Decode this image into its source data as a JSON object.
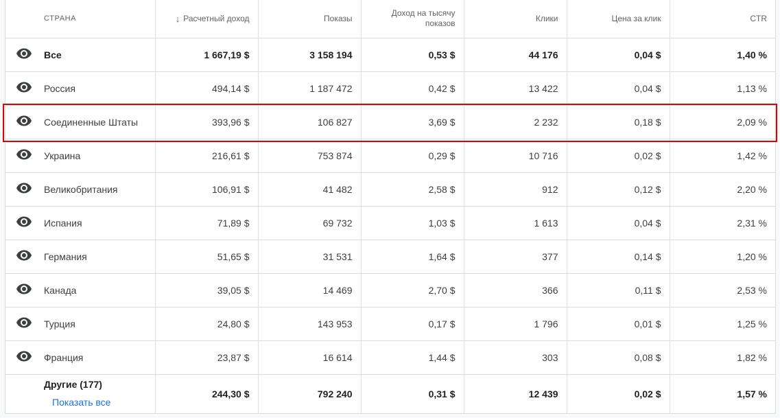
{
  "headers": {
    "country": "СТРАНА",
    "revenue": "Расчетный доход",
    "impressions": "Показы",
    "rpm": "Доход на тысячу показов",
    "clicks": "Клики",
    "cpc": "Цена за клик",
    "ctr": "CTR"
  },
  "total": {
    "country": "Все",
    "revenue": "1 667,19 $",
    "impressions": "3 158 194",
    "rpm": "0,53 $",
    "clicks": "44 176",
    "cpc": "0,04 $",
    "ctr": "1,40 %"
  },
  "rows": [
    {
      "country": "Россия",
      "revenue": "494,14 $",
      "impressions": "1 187 472",
      "rpm": "0,42 $",
      "clicks": "13 422",
      "cpc": "0,04 $",
      "ctr": "1,13 %"
    },
    {
      "country": "Соединенные Штаты",
      "revenue": "393,96 $",
      "impressions": "106 827",
      "rpm": "3,69 $",
      "clicks": "2 232",
      "cpc": "0,18 $",
      "ctr": "2,09 %"
    },
    {
      "country": "Украина",
      "revenue": "216,61 $",
      "impressions": "753 874",
      "rpm": "0,29 $",
      "clicks": "10 716",
      "cpc": "0,02 $",
      "ctr": "1,42 %"
    },
    {
      "country": "Великобритания",
      "revenue": "106,91 $",
      "impressions": "41 482",
      "rpm": "2,58 $",
      "clicks": "912",
      "cpc": "0,12 $",
      "ctr": "2,20 %"
    },
    {
      "country": "Испания",
      "revenue": "71,89 $",
      "impressions": "69 732",
      "rpm": "1,03 $",
      "clicks": "1 613",
      "cpc": "0,04 $",
      "ctr": "2,31 %"
    },
    {
      "country": "Германия",
      "revenue": "51,65 $",
      "impressions": "31 531",
      "rpm": "1,64 $",
      "clicks": "377",
      "cpc": "0,14 $",
      "ctr": "1,20 %"
    },
    {
      "country": "Канада",
      "revenue": "39,05 $",
      "impressions": "14 469",
      "rpm": "2,70 $",
      "clicks": "366",
      "cpc": "0,11 $",
      "ctr": "2,53 %"
    },
    {
      "country": "Турция",
      "revenue": "24,80 $",
      "impressions": "143 953",
      "rpm": "0,17 $",
      "clicks": "1 796",
      "cpc": "0,01 $",
      "ctr": "1,25 %"
    },
    {
      "country": "Франция",
      "revenue": "23,87 $",
      "impressions": "16 614",
      "rpm": "1,44 $",
      "clicks": "303",
      "cpc": "0,08 $",
      "ctr": "1,82 %"
    }
  ],
  "others": {
    "label": "Другие (177)",
    "show_all": "Показать все",
    "revenue": "244,30 $",
    "impressions": "792 240",
    "rpm": "0,31 $",
    "clicks": "12 439",
    "cpc": "0,02 $",
    "ctr": "1,57 %"
  },
  "icons": {
    "row_toggle": "eye-icon",
    "sort": "arrow-down-icon"
  },
  "colors": {
    "highlight": "#e00000",
    "link": "#1a73e8"
  }
}
